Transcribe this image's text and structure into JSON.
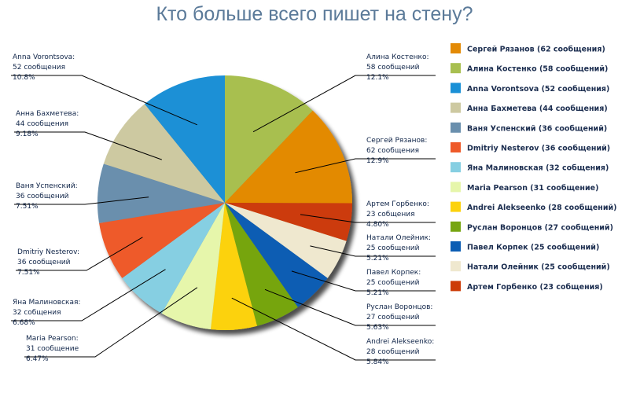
{
  "chart_data": {
    "type": "pie",
    "title": "Кто больше всего пишет на стену?",
    "slices": [
      {
        "label": "Алина Костенко",
        "value": 58,
        "count_text": "58 сообщений",
        "percent_text": "12.1%",
        "legend": "Алина Костенко (58 сообщений)",
        "color": "#a8bf50"
      },
      {
        "label": "Сергей Рязанов",
        "value": 62,
        "count_text": "62 сообщения",
        "percent_text": "12.9%",
        "legend": "Сергей Рязанов (62 сообщения)",
        "color": "#e38a05"
      },
      {
        "label": "Артем Горбенко",
        "value": 23,
        "count_text": "23 собщения",
        "percent_text": "4.80%",
        "legend": "Артем Горбенко (23 собщения)",
        "color": "#cc3b07"
      },
      {
        "label": "Натали Олейник",
        "value": 25,
        "count_text": "25 сообщений",
        "percent_text": "5.21%",
        "legend": "Натали Олейник (25 сообщений)",
        "color": "#efe8cf"
      },
      {
        "label": "Павел Корпек",
        "value": 25,
        "count_text": "25 сообщений",
        "percent_text": "5.21%",
        "legend": "Павел Корпек (25 сообщений)",
        "color": "#0c5db3"
      },
      {
        "label": "Руслан Воронцов",
        "value": 27,
        "count_text": "27 сообщений",
        "percent_text": "5.63%",
        "legend": "Руслан Воронцов (27 сообщений)",
        "color": "#76a511"
      },
      {
        "label": "Andrei Alekseenko",
        "value": 28,
        "count_text": "28 сообщений",
        "percent_text": "5.84%",
        "legend": "Andrei Alekseenko (28 сообщений)",
        "color": "#fcd20d"
      },
      {
        "label": "Maria Pearson",
        "value": 31,
        "count_text": "31 сообщение",
        "percent_text": "6.47%",
        "legend": "Maria Pearson (31 сообщение)",
        "color": "#e6f6ab"
      },
      {
        "label": "Яна Малиновская",
        "value": 32,
        "count_text": "32 собщения",
        "percent_text": "6.68%",
        "legend": "Яна Малиновская (32 собщения)",
        "color": "#86cfe2"
      },
      {
        "label": "Dmitriy Nesterov",
        "value": 36,
        "count_text": "36 сообщений",
        "percent_text": "7.51%",
        "legend": "Dmitriy Nesterov (36 сообщений)",
        "color": "#ee5a2a"
      },
      {
        "label": "Ваня Успенский",
        "value": 36,
        "count_text": "36 сообщений",
        "percent_text": "7.51%",
        "legend": "Ваня Успенский (36 сообщений)",
        "color": "#6a8fad"
      },
      {
        "label": "Анна Бахметева",
        "value": 44,
        "count_text": "44 сообщения",
        "percent_text": "9.18%",
        "legend": "Анна Бахметева (44 сообщения)",
        "color": "#cdc9a1"
      },
      {
        "label": "Anna Vorontsova",
        "value": 52,
        "count_text": "52 сообщения",
        "percent_text": "10.8%",
        "legend": "Anna Vorontsova (52 сообщения)",
        "color": "#1a90d6"
      }
    ],
    "legend_order": [
      "Сергей Рязанов",
      "Алина Костенко",
      "Anna Vorontsova",
      "Анна Бахметева",
      "Ваня Успенский",
      "Dmitriy Nesterov",
      "Яна Малиновская",
      "Maria Pearson",
      "Andrei Alekseenko",
      "Руслан Воронцов",
      "Павел Корпек",
      "Натали Олейник",
      "Артем Горбенко"
    ],
    "legend_position": "right"
  }
}
